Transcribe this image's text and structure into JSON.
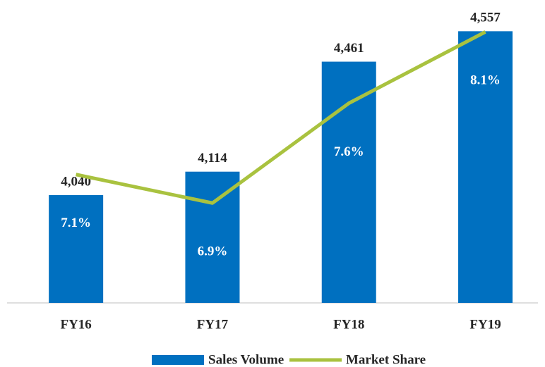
{
  "chart_data": {
    "type": "bar_line",
    "categories": [
      "FY16",
      "FY17",
      "FY18",
      "FY19"
    ],
    "series": [
      {
        "name": "Sales Volume",
        "type": "bar",
        "color": "#0070c0",
        "values": [
          4040,
          4114,
          4461,
          4557
        ],
        "value_labels": [
          "4,040",
          "4,114",
          "4,461",
          "4,557"
        ]
      },
      {
        "name": "Market Share",
        "type": "line",
        "axis": "y2",
        "color": "#a9c23f",
        "values": [
          7.1,
          6.9,
          7.6,
          8.1
        ],
        "value_labels": [
          "7.1%",
          "6.9%",
          "7.6%",
          "8.1%"
        ]
      }
    ],
    "ylim": [
      3700,
      4600
    ],
    "y2lim": [
      6.2,
      8.2
    ],
    "legend": "bottom"
  }
}
